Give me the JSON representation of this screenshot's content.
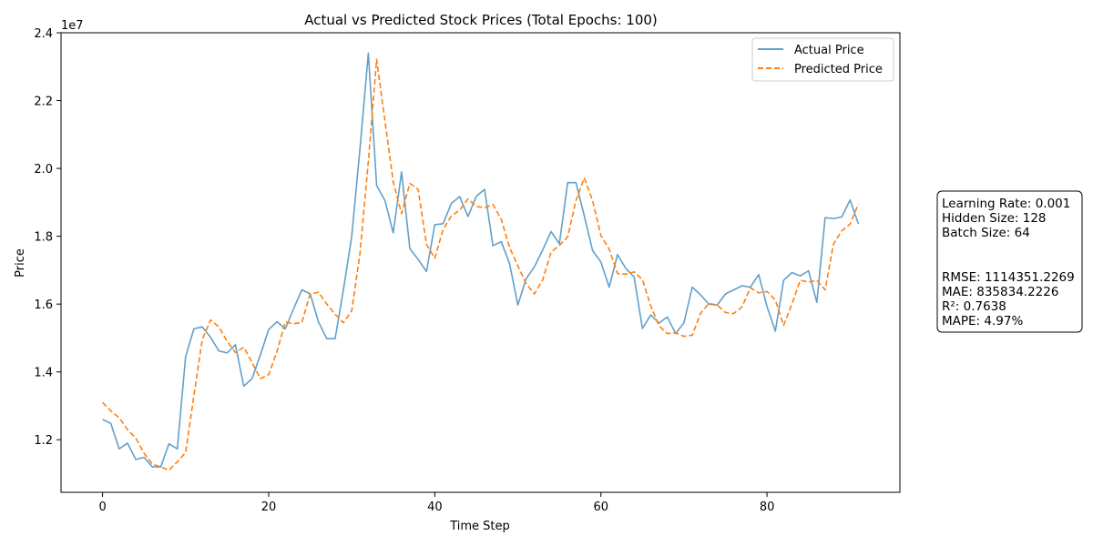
{
  "chart_data": {
    "type": "line",
    "title": "Actual vs Predicted Stock Prices (Total Epochs: 100)",
    "xlabel": "Time Step",
    "ylabel": "Price",
    "y_scale_label": "1e7",
    "xlim": [
      -5,
      96
    ],
    "ylim": [
      10.45,
      24.0
    ],
    "x_ticks": [
      0,
      20,
      40,
      60,
      80
    ],
    "x_tick_labels": [
      "0",
      "20",
      "40",
      "60",
      "80"
    ],
    "y_ticks": [
      12,
      14,
      16,
      18,
      20,
      22,
      24
    ],
    "y_tick_labels": [
      "1.2",
      "1.4",
      "1.6",
      "1.8",
      "2.0",
      "2.2",
      "2.4"
    ],
    "grid": false,
    "legend_position": "top-right",
    "series": [
      {
        "name": "Actual Price",
        "color": "#1f77b4",
        "style": "solid",
        "values": [
          12.6,
          12.48,
          11.73,
          11.9,
          11.42,
          11.48,
          11.2,
          11.2,
          11.88,
          11.73,
          14.45,
          15.27,
          15.33,
          15.02,
          14.62,
          14.56,
          14.8,
          13.58,
          13.8,
          14.5,
          15.25,
          15.48,
          15.27,
          15.86,
          16.42,
          16.3,
          15.47,
          14.98,
          14.98,
          16.42,
          18.0,
          20.6,
          23.4,
          19.5,
          19.05,
          18.1,
          19.9,
          17.63,
          17.32,
          16.96,
          18.34,
          18.37,
          18.97,
          19.17,
          18.58,
          19.18,
          19.38,
          17.72,
          17.84,
          17.2,
          15.97,
          16.75,
          17.1,
          17.6,
          18.14,
          17.78,
          19.58,
          19.58,
          18.6,
          17.58,
          17.24,
          16.5,
          17.46,
          17.05,
          16.8,
          15.28,
          15.68,
          15.44,
          15.62,
          15.13,
          15.45,
          16.5,
          16.27,
          16.0,
          15.97,
          16.3,
          16.42,
          16.54,
          16.5,
          16.87,
          15.93,
          15.2,
          16.7,
          16.93,
          16.83,
          16.98,
          16.05,
          18.55,
          18.52,
          18.57,
          19.07,
          18.37
        ]
      },
      {
        "name": "Predicted Price",
        "color": "#ff7f0e",
        "style": "dashed",
        "values": [
          13.1,
          12.85,
          12.65,
          12.3,
          12.05,
          11.6,
          11.28,
          11.2,
          11.1,
          11.35,
          11.62,
          13.3,
          14.95,
          15.53,
          15.33,
          14.9,
          14.57,
          14.73,
          14.28,
          13.8,
          13.92,
          14.6,
          15.47,
          15.42,
          15.46,
          16.3,
          16.35,
          16.0,
          15.7,
          15.45,
          15.8,
          17.5,
          20.2,
          23.22,
          21.4,
          19.6,
          18.67,
          19.56,
          19.38,
          17.76,
          17.35,
          18.2,
          18.6,
          18.77,
          19.1,
          18.88,
          18.84,
          18.94,
          18.5,
          17.67,
          17.13,
          16.6,
          16.3,
          16.72,
          17.53,
          17.73,
          17.98,
          19.05,
          19.72,
          19.05,
          18.02,
          17.62,
          16.9,
          16.88,
          16.95,
          16.72,
          15.95,
          15.36,
          15.13,
          15.15,
          15.05,
          15.08,
          15.73,
          16.02,
          15.97,
          15.75,
          15.72,
          15.92,
          16.48,
          16.33,
          16.37,
          16.12,
          15.37,
          16.0,
          16.7,
          16.65,
          16.7,
          16.42,
          17.77,
          18.16,
          18.36,
          18.95
        ]
      }
    ],
    "info_box": {
      "hyperparameters": [
        "Learning Rate: 0.001",
        "Hidden Size: 128",
        "Batch Size: 64"
      ],
      "metrics": [
        "RMSE: 1114351.2269",
        "MAE: 835834.2226",
        "R²: 0.7638",
        "MAPE: 4.97%"
      ]
    }
  }
}
